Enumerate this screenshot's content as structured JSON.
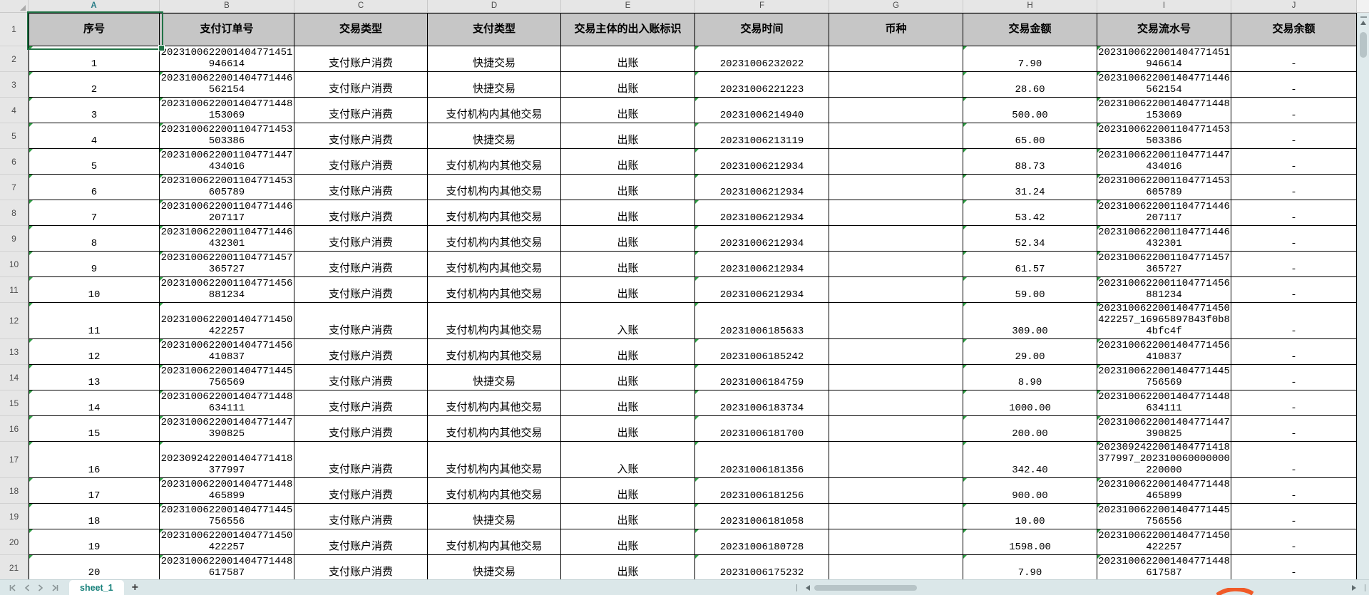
{
  "colors": {
    "chrome": "#e6e6e6",
    "headerfill": "#c6c6c6",
    "selection": "#217346",
    "selletter": "#2b7e88",
    "errgreen": "#2f9e44",
    "tabbar": "#dbe7e9",
    "tabtext": "#16807a",
    "scrollbg": "#dfeaec",
    "thumb": "#b7c4c7",
    "logoorange": "#f05a28"
  },
  "selection": {
    "active_cell": "A1"
  },
  "tabbar": {
    "sheet_tab_label": "sheet_1",
    "add_sheet_label": "+"
  },
  "sheet": {
    "column_letters": [
      "A",
      "B",
      "C",
      "D",
      "E",
      "F",
      "G",
      "H",
      "I",
      "J"
    ],
    "row_numbers": [
      "1",
      "2",
      "3",
      "4",
      "5",
      "6",
      "7",
      "8",
      "9",
      "10",
      "11",
      "12",
      "13",
      "14",
      "15",
      "16",
      "17",
      "18",
      "19",
      "20",
      "21"
    ],
    "headers": [
      "序号",
      "支付订单号",
      "交易类型",
      "支付类型",
      "交易主体的出入账标识",
      "交易时间",
      "币种",
      "交易金额",
      "交易流水号",
      "交易余额"
    ],
    "rows": [
      {
        "seq": "1",
        "order_no": "2023100622001404771451946614",
        "txn_type": "支付账户消费",
        "pay_type": "快捷交易",
        "direction": "出账",
        "time": "20231006232022",
        "currency": "",
        "amount": "7.90",
        "serial_no": "2023100622001404771451946614",
        "balance": "-"
      },
      {
        "seq": "2",
        "order_no": "2023100622001404771446562154",
        "txn_type": "支付账户消费",
        "pay_type": "快捷交易",
        "direction": "出账",
        "time": "20231006221223",
        "currency": "",
        "amount": "28.60",
        "serial_no": "2023100622001404771446562154",
        "balance": "-"
      },
      {
        "seq": "3",
        "order_no": "2023100622001404771448153069",
        "txn_type": "支付账户消费",
        "pay_type": "支付机构内其他交易",
        "direction": "出账",
        "time": "20231006214940",
        "currency": "",
        "amount": "500.00",
        "serial_no": "2023100622001404771448153069",
        "balance": "-"
      },
      {
        "seq": "4",
        "order_no": "2023100622001104771453503386",
        "txn_type": "支付账户消费",
        "pay_type": "快捷交易",
        "direction": "出账",
        "time": "20231006213119",
        "currency": "",
        "amount": "65.00",
        "serial_no": "2023100622001104771453503386",
        "balance": "-"
      },
      {
        "seq": "5",
        "order_no": "2023100622001104771447434016",
        "txn_type": "支付账户消费",
        "pay_type": "支付机构内其他交易",
        "direction": "出账",
        "time": "20231006212934",
        "currency": "",
        "amount": "88.73",
        "serial_no": "2023100622001104771447434016",
        "balance": "-"
      },
      {
        "seq": "6",
        "order_no": "2023100622001104771453605789",
        "txn_type": "支付账户消费",
        "pay_type": "支付机构内其他交易",
        "direction": "出账",
        "time": "20231006212934",
        "currency": "",
        "amount": "31.24",
        "serial_no": "2023100622001104771453605789",
        "balance": "-"
      },
      {
        "seq": "7",
        "order_no": "2023100622001104771446207117",
        "txn_type": "支付账户消费",
        "pay_type": "支付机构内其他交易",
        "direction": "出账",
        "time": "20231006212934",
        "currency": "",
        "amount": "53.42",
        "serial_no": "2023100622001104771446207117",
        "balance": "-"
      },
      {
        "seq": "8",
        "order_no": "2023100622001104771446432301",
        "txn_type": "支付账户消费",
        "pay_type": "支付机构内其他交易",
        "direction": "出账",
        "time": "20231006212934",
        "currency": "",
        "amount": "52.34",
        "serial_no": "2023100622001104771446432301",
        "balance": "-"
      },
      {
        "seq": "9",
        "order_no": "2023100622001104771457365727",
        "txn_type": "支付账户消费",
        "pay_type": "支付机构内其他交易",
        "direction": "出账",
        "time": "20231006212934",
        "currency": "",
        "amount": "61.57",
        "serial_no": "2023100622001104771457365727",
        "balance": "-"
      },
      {
        "seq": "10",
        "order_no": "2023100622001104771456881234",
        "txn_type": "支付账户消费",
        "pay_type": "支付机构内其他交易",
        "direction": "出账",
        "time": "20231006212934",
        "currency": "",
        "amount": "59.00",
        "serial_no": "2023100622001104771456881234",
        "balance": "-"
      },
      {
        "seq": "11",
        "order_no": "2023100622001404771450422257",
        "txn_type": "支付账户消费",
        "pay_type": "支付机构内其他交易",
        "direction": "入账",
        "time": "20231006185633",
        "currency": "",
        "amount": "309.00",
        "serial_no": "2023100622001404771450422257_16965897843f0b84bfc4f",
        "balance": "-"
      },
      {
        "seq": "12",
        "order_no": "2023100622001404771456410837",
        "txn_type": "支付账户消费",
        "pay_type": "支付机构内其他交易",
        "direction": "出账",
        "time": "20231006185242",
        "currency": "",
        "amount": "29.00",
        "serial_no": "2023100622001404771456410837",
        "balance": "-"
      },
      {
        "seq": "13",
        "order_no": "2023100622001404771445756569",
        "txn_type": "支付账户消费",
        "pay_type": "快捷交易",
        "direction": "出账",
        "time": "20231006184759",
        "currency": "",
        "amount": "8.90",
        "serial_no": "2023100622001404771445756569",
        "balance": "-"
      },
      {
        "seq": "14",
        "order_no": "2023100622001404771448634111",
        "txn_type": "支付账户消费",
        "pay_type": "支付机构内其他交易",
        "direction": "出账",
        "time": "20231006183734",
        "currency": "",
        "amount": "1000.00",
        "serial_no": "2023100622001404771448634111",
        "balance": "-"
      },
      {
        "seq": "15",
        "order_no": "2023100622001404771447390825",
        "txn_type": "支付账户消费",
        "pay_type": "支付机构内其他交易",
        "direction": "出账",
        "time": "20231006181700",
        "currency": "",
        "amount": "200.00",
        "serial_no": "2023100622001404771447390825",
        "balance": "-"
      },
      {
        "seq": "16",
        "order_no": "2023092422001404771418377997",
        "txn_type": "支付账户消费",
        "pay_type": "支付机构内其他交易",
        "direction": "入账",
        "time": "20231006181356",
        "currency": "",
        "amount": "342.40",
        "serial_no": "2023092422001404771418377997_202310060000000220000",
        "balance": "-"
      },
      {
        "seq": "17",
        "order_no": "2023100622001404771448465899",
        "txn_type": "支付账户消费",
        "pay_type": "支付机构内其他交易",
        "direction": "出账",
        "time": "20231006181256",
        "currency": "",
        "amount": "900.00",
        "serial_no": "2023100622001404771448465899",
        "balance": "-"
      },
      {
        "seq": "18",
        "order_no": "2023100622001404771445756556",
        "txn_type": "支付账户消费",
        "pay_type": "快捷交易",
        "direction": "出账",
        "time": "20231006181058",
        "currency": "",
        "amount": "10.00",
        "serial_no": "2023100622001404771445756556",
        "balance": "-"
      },
      {
        "seq": "19",
        "order_no": "2023100622001404771450422257",
        "txn_type": "支付账户消费",
        "pay_type": "支付机构内其他交易",
        "direction": "出账",
        "time": "20231006180728",
        "currency": "",
        "amount": "1598.00",
        "serial_no": "2023100622001404771450422257",
        "balance": "-"
      },
      {
        "seq": "20",
        "order_no": "2023100622001404771448617587",
        "txn_type": "支付账户消费",
        "pay_type": "快捷交易",
        "direction": "出账",
        "time": "20231006175232",
        "currency": "",
        "amount": "7.90",
        "serial_no": "2023100622001404771448617587",
        "balance": "-"
      }
    ],
    "error_indicator_columns": [
      "A",
      "B",
      "F",
      "H",
      "I"
    ]
  }
}
